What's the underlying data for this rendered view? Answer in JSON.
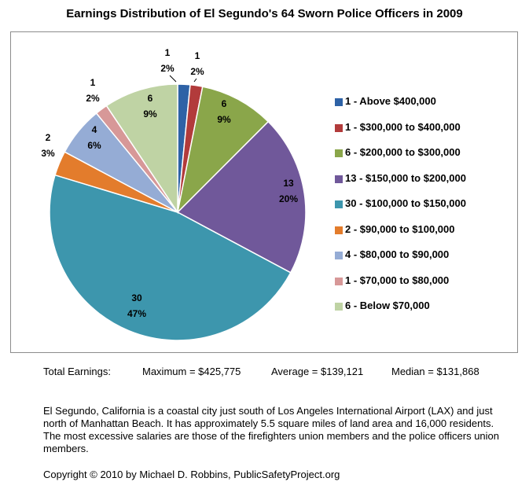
{
  "chart_data": {
    "type": "pie",
    "title": "Earnings Distribution of El Segundo's 64 Sworn Police Officers in 2009",
    "categories": [
      "1 - Above $400,000",
      "1 - $300,000 to $400,000",
      "6 - $200,000 to $300,000",
      "13 - $150,000 to $200,000",
      "30 - $100,000 to $150,000",
      "2 - $90,000 to $100,000",
      "4 - $80,000 to $90,000",
      "1 - $70,000 to $80,000",
      "6 - Below $70,000"
    ],
    "values": [
      1,
      1,
      6,
      13,
      30,
      2,
      4,
      1,
      6
    ],
    "percent_labels": [
      "2%",
      "2%",
      "9%",
      "20%",
      "47%",
      "3%",
      "6%",
      "2%",
      "9%"
    ],
    "colors": [
      "#2e62a6",
      "#b23b3b",
      "#8aa64a",
      "#70589a",
      "#3d96ad",
      "#e37c2c",
      "#95acd5",
      "#d79898",
      "#bfd3a4"
    ],
    "legend_position": "right"
  },
  "totals": {
    "label": "Total Earnings:",
    "maximum": "Maximum = $425,775",
    "average": "Average = $139,121",
    "median": "Median = $131,868"
  },
  "description": "El Segundo, California is a coastal city just south of Los Angeles International Airport (LAX) and just north of Manhattan Beach. It has approximately 5.5 square miles of land area and 16,000 residents. The most excessive salaries are those of the firefighters union members and the police officers union members.",
  "copyright": "Copyright  © 2010 by Michael D. Robbins, PublicSafetyProject.org"
}
